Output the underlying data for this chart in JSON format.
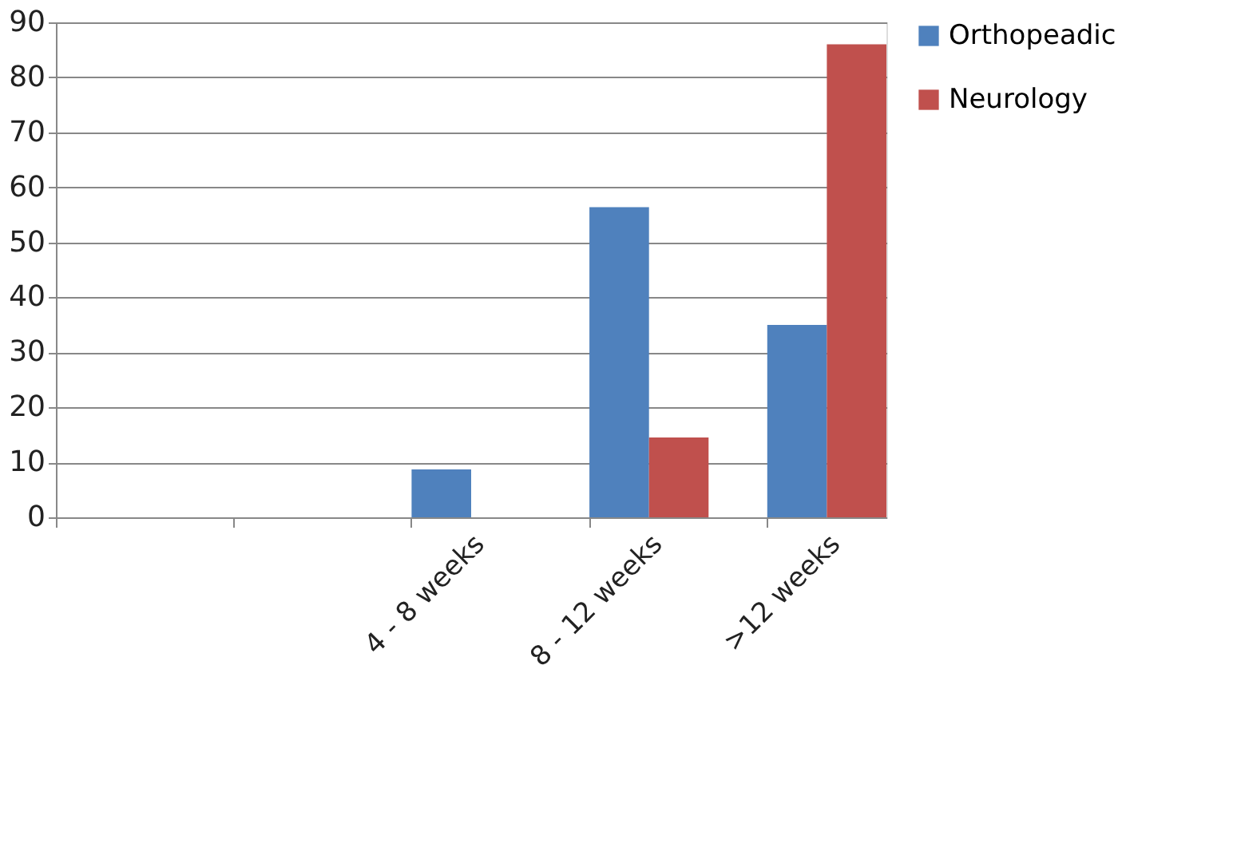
{
  "chart_data": {
    "type": "bar",
    "categories": [
      null,
      null,
      "4 - 8 weeks",
      "8 - 12 weeks",
      ">12 weeks"
    ],
    "series": [
      {
        "name": "Orthopeadic",
        "color": "#4f81bd",
        "values": [
          null,
          null,
          8.7,
          56.4,
          35.0
        ]
      },
      {
        "name": "Neurology",
        "color": "#c0504d",
        "values": [
          null,
          null,
          null,
          14.5,
          86.0
        ]
      }
    ],
    "ylim": [
      0,
      90
    ],
    "yticks": [
      0,
      10,
      20,
      30,
      40,
      50,
      60,
      70,
      80,
      90
    ],
    "grid": "y",
    "legend": "right"
  }
}
